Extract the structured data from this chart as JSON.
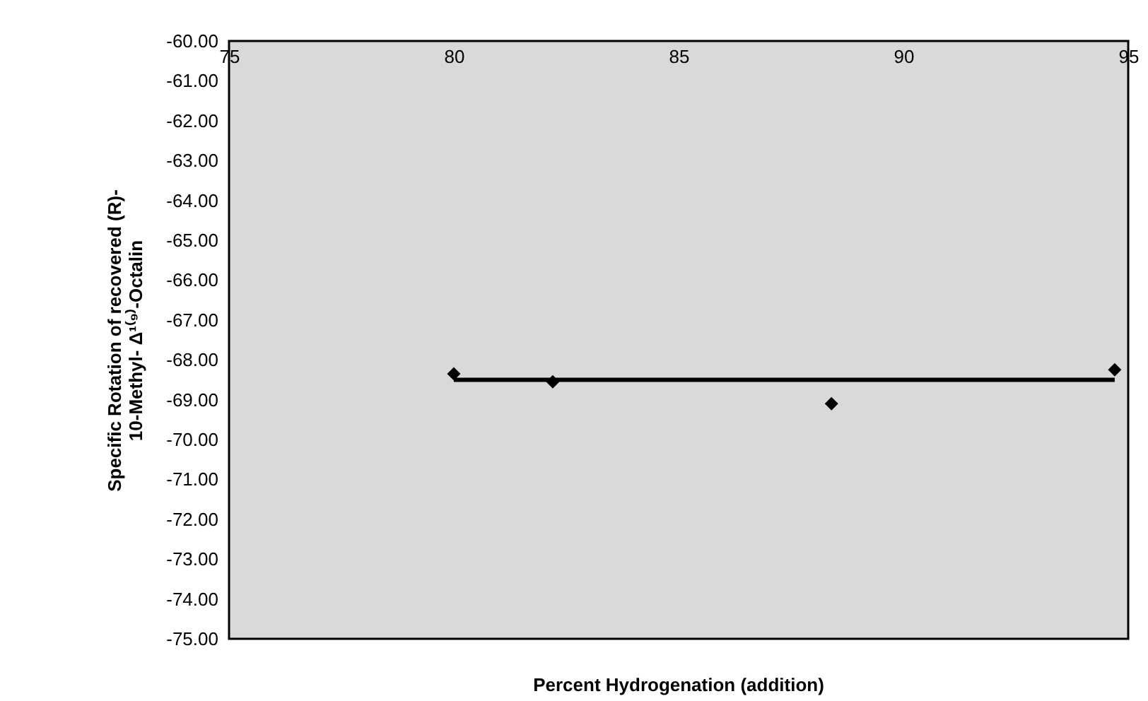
{
  "chart_data": {
    "type": "scatter",
    "xlabel": "Percent Hydrogenation (addition)",
    "ylabel": "Specific Rotation of recovered (R)-\n10-Methyl- Δ¹⁽⁹⁾-Octalin",
    "x": [
      80,
      82.2,
      88.4,
      94.7
    ],
    "marker": "diamond",
    "grid": false,
    "series": [
      {
        "color": "#000000",
        "values": [
          -68.35,
          -68.55,
          -69.1,
          -68.25
        ]
      },
      {
        "type": "line",
        "x": [
          80,
          94.7
        ],
        "color": "#000000",
        "values": [
          -68.5,
          -68.5
        ],
        "marker": "none",
        "line_style": "solid"
      }
    ],
    "xlim": [
      75,
      95
    ],
    "xticks": [
      75,
      80,
      85,
      90,
      95
    ],
    "ylim": [
      -75,
      -60
    ],
    "yticks": [
      {
        "value": -60,
        "label": "-60.00"
      },
      {
        "value": -61,
        "label": "-61.00"
      },
      {
        "value": -62,
        "label": "-62.00"
      },
      {
        "value": -63,
        "label": "-63.00"
      },
      {
        "value": -64,
        "label": "-64.00"
      },
      {
        "value": -65,
        "label": "-65.00"
      },
      {
        "value": -66,
        "label": "-66.00"
      },
      {
        "value": -67,
        "label": "-67.00"
      },
      {
        "value": -68,
        "label": "-68.00"
      },
      {
        "value": -69,
        "label": "-69.00"
      },
      {
        "value": -70,
        "label": "-70.00"
      },
      {
        "value": -71,
        "label": "-71.00"
      },
      {
        "value": -72,
        "label": "-72.00"
      },
      {
        "value": -73,
        "label": "-73.00"
      },
      {
        "value": -74,
        "label": "-74.00"
      },
      {
        "value": -75,
        "label": "-75.00"
      }
    ]
  }
}
